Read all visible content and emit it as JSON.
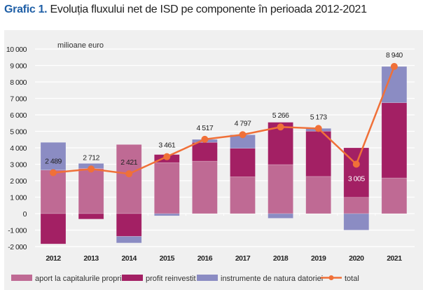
{
  "title": {
    "label": "Grafic 1.",
    "text": "Evoluția fluxului net de ISD pe componente în perioada 2012-2021"
  },
  "chart_data": {
    "type": "bar",
    "stacked": true,
    "unit_label": "milioane euro",
    "ylim": [
      -2000,
      10000
    ],
    "yticks": [
      -2000,
      -1000,
      0,
      1000,
      2000,
      3000,
      4000,
      5000,
      6000,
      7000,
      8000,
      9000,
      10000
    ],
    "ytick_labels": [
      "-2 000",
      "-1 000",
      "0",
      "1 000",
      "2 000",
      "3 000",
      "4 000",
      "5 000",
      "6 000",
      "7 000",
      "8 000",
      "9 000",
      "10 000"
    ],
    "grid": true,
    "legend": "bottom",
    "categories": [
      "2012",
      "2013",
      "2014",
      "2015",
      "2016",
      "2017",
      "2018",
      "2019",
      "2020",
      "2021"
    ],
    "series": [
      {
        "name": "aport la capitalurile proprii",
        "type": "bar",
        "color": "#bf6a94",
        "values": [
          2650,
          2750,
          4200,
          3100,
          3190,
          2240,
          2980,
          2260,
          990,
          2170
        ]
      },
      {
        "name": "profit reinvestit",
        "type": "bar",
        "color": "#a32064",
        "values": [
          -1840,
          -330,
          -1380,
          490,
          1140,
          1730,
          2570,
          2750,
          3010,
          4570
        ]
      },
      {
        "name": "instrumente de natura datoriei",
        "type": "bar",
        "color": "#8b8cc3",
        "values": [
          1680,
          300,
          -400,
          -130,
          180,
          820,
          -280,
          170,
          -1000,
          2200
        ]
      },
      {
        "name": "total",
        "type": "line",
        "color": "#f07038",
        "values": [
          2489,
          2712,
          2421,
          3461,
          4517,
          4797,
          5266,
          5173,
          3005,
          8940
        ],
        "labels": [
          "2 489",
          "2 712",
          "2 421",
          "3 461",
          "4 517",
          "4 797",
          "5 266",
          "5 173",
          "3 005",
          "8 940"
        ]
      }
    ]
  }
}
